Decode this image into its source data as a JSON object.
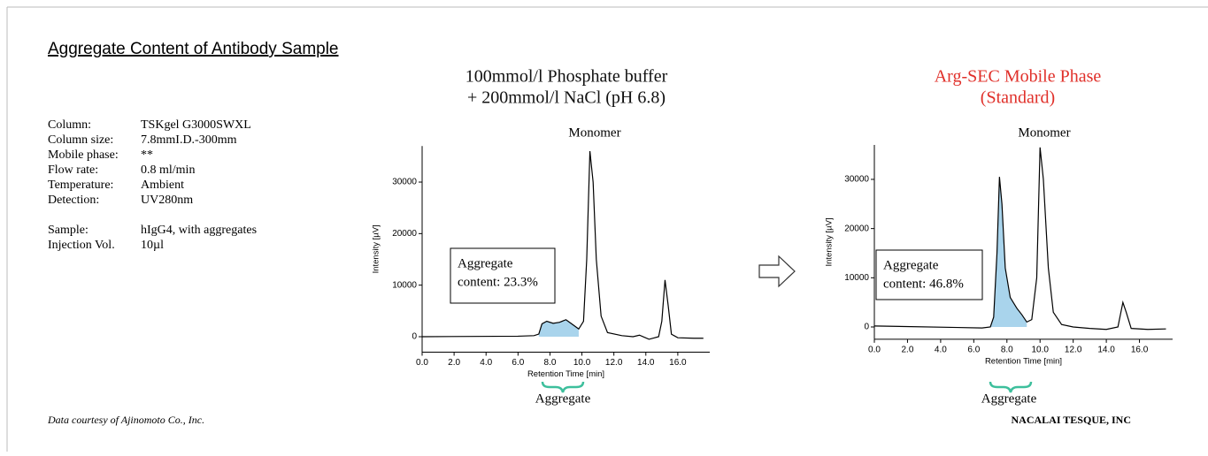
{
  "slide": {
    "title": "Aggregate Content of Antibody Sample",
    "params": [
      [
        "Column:",
        "TSKgel G3000SWXL"
      ],
      [
        "Column size:",
        "7.8mmI.D.-300mm"
      ],
      [
        "Mobile phase:",
        "**"
      ],
      [
        "Flow rate:",
        "0.8 ml/min"
      ],
      [
        "Temperature:",
        "Ambient"
      ],
      [
        "Detection:",
        "UV280nm"
      ],
      [
        "Sample:",
        "hIgG4, with aggregates"
      ],
      [
        "Injection Vol.",
        "10µl"
      ]
    ],
    "credit": "Data courtesy of Ajinomoto Co., Inc.",
    "company": "NACALAI TESQUE, INC"
  },
  "chart_data": [
    {
      "type": "line",
      "title_lines": [
        "100mmol/l Phosphate buffer",
        "+ 200mmol/l NaCl (pH 6.8)"
      ],
      "title_color": "#111111",
      "peak_label": "Monomer",
      "region_label": "Aggregate",
      "annotation": [
        "Aggregate",
        "content: 23.3%"
      ],
      "x_label": "Retention Time [min]",
      "y_label": "Intensity [µV]",
      "color": "#000000",
      "fill_color": "#a9d4ec",
      "x": [
        0,
        6,
        7.0,
        7.3,
        7.5,
        7.8,
        8.2,
        8.6,
        9.0,
        9.4,
        9.8,
        10.1,
        10.3,
        10.5,
        10.7,
        10.9,
        11.2,
        11.6,
        12.5,
        13.2,
        13.6,
        14.2,
        14.8,
        15.0,
        15.2,
        15.4,
        15.6,
        16.0,
        17.0,
        17.6
      ],
      "values": [
        0,
        100,
        200,
        500,
        2500,
        3000,
        2600,
        2800,
        3300,
        2400,
        1500,
        3000,
        15000,
        36000,
        30000,
        15000,
        4000,
        800,
        200,
        0,
        300,
        -500,
        0,
        3000,
        11000,
        6000,
        500,
        -200,
        -300,
        -300
      ],
      "xlim": [
        0,
        18
      ],
      "ylim": [
        -3000,
        37000
      ],
      "xticks": [
        {
          "value": 0,
          "label": "0.0"
        },
        {
          "value": 2,
          "label": "2.0"
        },
        {
          "value": 4,
          "label": "4.0"
        },
        {
          "value": 6,
          "label": "6.0"
        },
        {
          "value": 8,
          "label": "8.0"
        },
        {
          "value": 10,
          "label": "10.0"
        },
        {
          "value": 12,
          "label": "12.0"
        },
        {
          "value": 14,
          "label": "14.0"
        },
        {
          "value": 16,
          "label": "16.0"
        }
      ],
      "yticks": [
        0,
        10000,
        20000,
        30000
      ]
    },
    {
      "type": "line",
      "title_lines": [
        "Arg-SEC Mobile Phase",
        "(Standard)"
      ],
      "title_color": "#e0302a",
      "peak_label": "Monomer",
      "region_label": "Aggregate",
      "annotation": [
        "Aggregate",
        "content: 46.8%"
      ],
      "x_label": "Retention Time [min]",
      "y_label": "Intensity [µV]",
      "color": "#000000",
      "fill_color": "#a9d4ec",
      "x": [
        0,
        5,
        6.5,
        7.0,
        7.2,
        7.4,
        7.55,
        7.7,
        7.9,
        8.2,
        8.6,
        8.9,
        9.2,
        9.5,
        9.8,
        10.0,
        10.2,
        10.5,
        10.8,
        11.3,
        12,
        13,
        14,
        14.7,
        15.0,
        15.2,
        15.5,
        16.5,
        17.6
      ],
      "values": [
        200,
        -100,
        -200,
        0,
        2000,
        15000,
        30500,
        25000,
        12000,
        6000,
        3800,
        2500,
        1000,
        1500,
        10000,
        36500,
        30000,
        12000,
        3000,
        500,
        0,
        -300,
        -500,
        0,
        5000,
        3000,
        -300,
        -500,
        -400
      ],
      "xlim": [
        0,
        18
      ],
      "ylim": [
        -2500,
        37000
      ],
      "xticks": [
        {
          "value": 0,
          "label": "0.0"
        },
        {
          "value": 2,
          "label": "2.0"
        },
        {
          "value": 4,
          "label": "4.0"
        },
        {
          "value": 6,
          "label": "6.0"
        },
        {
          "value": 8,
          "label": "8.0"
        },
        {
          "value": 10,
          "label": "10.0"
        },
        {
          "value": 12,
          "label": "12.0"
        },
        {
          "value": 14,
          "label": "14.0"
        },
        {
          "value": 16,
          "label": "16.0"
        }
      ],
      "yticks": [
        0,
        10000,
        20000,
        30000
      ]
    }
  ]
}
